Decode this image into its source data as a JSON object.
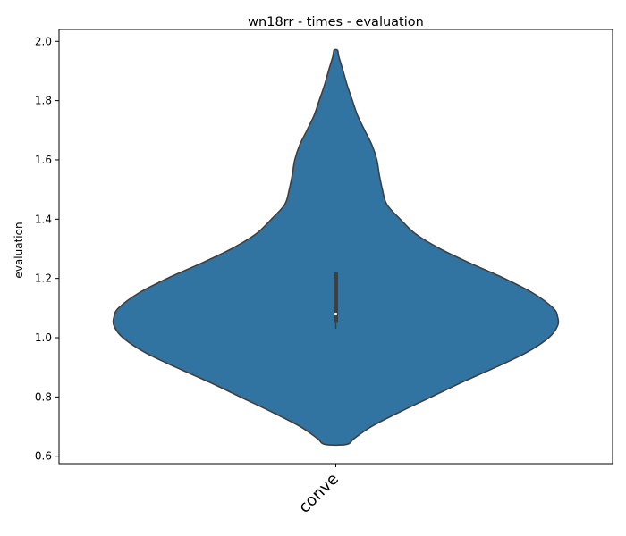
{
  "chart_data": {
    "type": "violin",
    "title": "wn18rr - times - evaluation",
    "xlabel": "",
    "ylabel": "evaluation",
    "categories": [
      "conve"
    ],
    "ylim": [
      0.575,
      2.04
    ],
    "yticks": [
      0.6,
      0.8,
      1.0,
      1.2,
      1.4,
      1.6,
      1.8,
      2.0
    ],
    "ytick_labels": [
      "0.6",
      "0.8",
      "1.0",
      "1.2",
      "1.4",
      "1.6",
      "1.8",
      "2.0"
    ],
    "grid": false,
    "color": "#3274a1",
    "edge_color": "#3f3f3f",
    "violins": [
      {
        "category": "conve",
        "min": 0.64,
        "max": 1.97,
        "quartiles": [
          1.05,
          1.08,
          1.22
        ],
        "whisker_low": 1.03,
        "density_profile": [
          {
            "y": 0.64,
            "w": 0.049
          },
          {
            "y": 0.66,
            "w": 0.083
          },
          {
            "y": 0.7,
            "w": 0.16
          },
          {
            "y": 0.75,
            "w": 0.29
          },
          {
            "y": 0.8,
            "w": 0.43
          },
          {
            "y": 0.85,
            "w": 0.57
          },
          {
            "y": 0.9,
            "w": 0.72
          },
          {
            "y": 0.95,
            "w": 0.86
          },
          {
            "y": 1.0,
            "w": 0.96
          },
          {
            "y": 1.04,
            "w": 1.0
          },
          {
            "y": 1.07,
            "w": 1.0
          },
          {
            "y": 1.1,
            "w": 0.98
          },
          {
            "y": 1.15,
            "w": 0.89
          },
          {
            "y": 1.2,
            "w": 0.76
          },
          {
            "y": 1.25,
            "w": 0.61
          },
          {
            "y": 1.3,
            "w": 0.47
          },
          {
            "y": 1.35,
            "w": 0.36
          },
          {
            "y": 1.4,
            "w": 0.29
          },
          {
            "y": 1.45,
            "w": 0.23
          },
          {
            "y": 1.5,
            "w": 0.21
          },
          {
            "y": 1.55,
            "w": 0.196
          },
          {
            "y": 1.6,
            "w": 0.185
          },
          {
            "y": 1.65,
            "w": 0.163
          },
          {
            "y": 1.7,
            "w": 0.13
          },
          {
            "y": 1.75,
            "w": 0.098
          },
          {
            "y": 1.8,
            "w": 0.075
          },
          {
            "y": 1.85,
            "w": 0.052
          },
          {
            "y": 1.9,
            "w": 0.033
          },
          {
            "y": 1.95,
            "w": 0.013
          },
          {
            "y": 1.97,
            "w": 0.008
          }
        ]
      }
    ]
  }
}
